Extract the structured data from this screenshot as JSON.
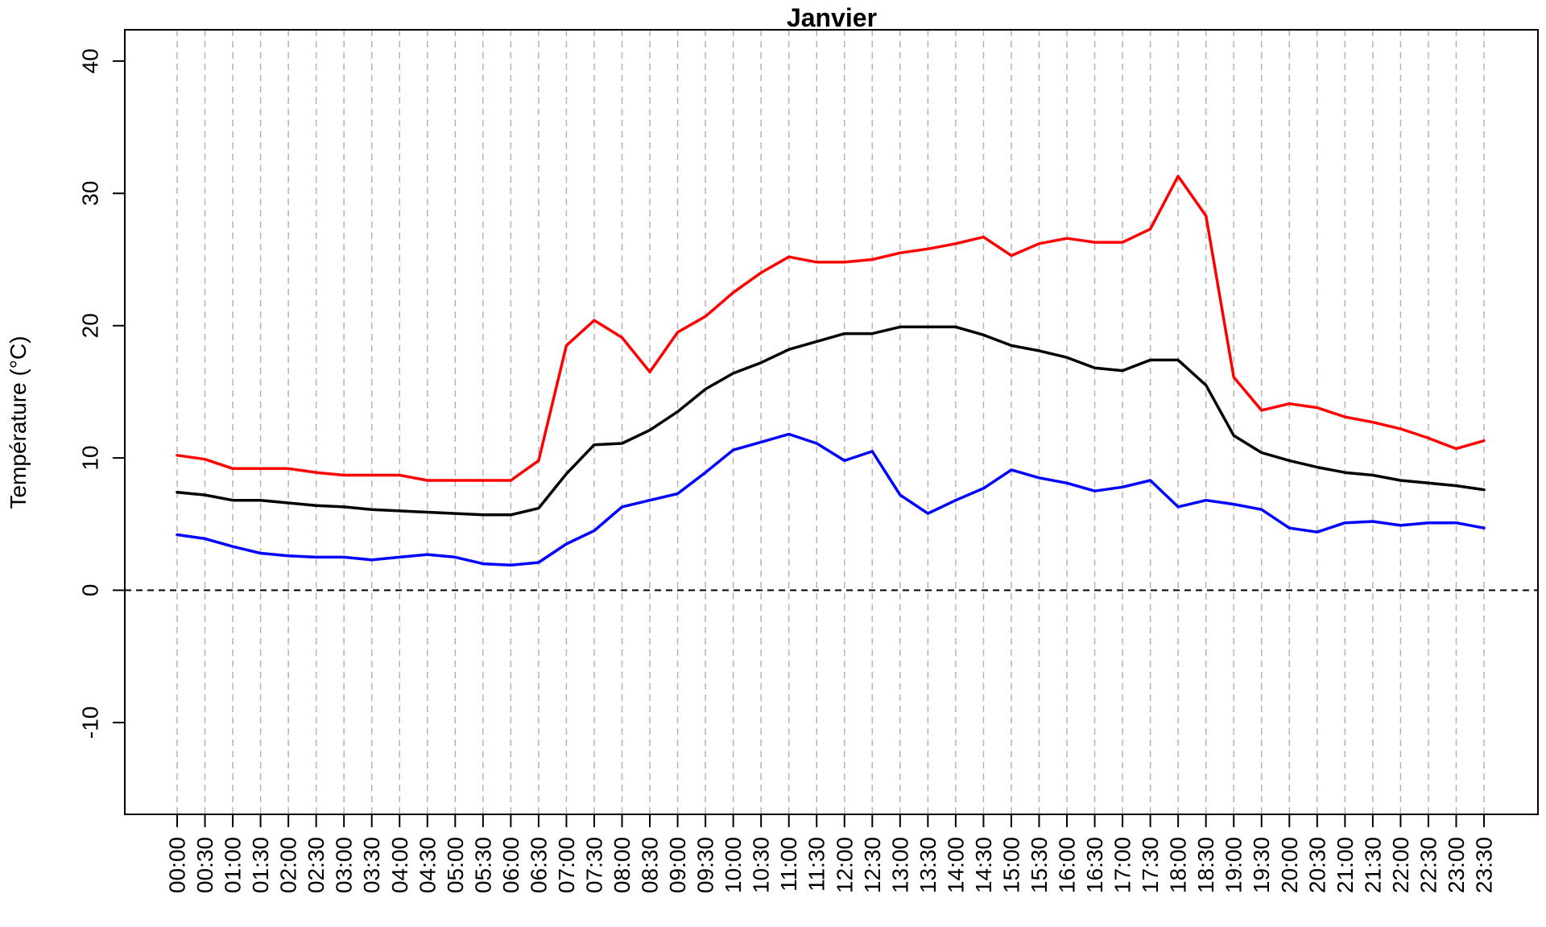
{
  "chart_data": {
    "type": "line",
    "title": "Janvier",
    "xlabel": "",
    "ylabel": "Température (°C)",
    "ylim": [
      -17,
      42
    ],
    "yticks": [
      -10,
      0,
      10,
      20,
      30,
      40
    ],
    "grid": "vertical-dashed",
    "reference_line_y": 0,
    "categories": [
      "00:00",
      "00:30",
      "01:00",
      "01:30",
      "02:00",
      "02:30",
      "03:00",
      "03:30",
      "04:00",
      "04:30",
      "05:00",
      "05:30",
      "06:00",
      "06:30",
      "07:00",
      "07:30",
      "08:00",
      "08:30",
      "09:00",
      "09:30",
      "10:00",
      "10:30",
      "11:00",
      "11:30",
      "12:00",
      "12:30",
      "13:00",
      "13:30",
      "14:00",
      "14:30",
      "15:00",
      "15:30",
      "16:00",
      "16:30",
      "17:00",
      "17:30",
      "18:00",
      "18:30",
      "19:00",
      "19:30",
      "20:00",
      "20:30",
      "21:00",
      "21:30",
      "22:00",
      "22:30",
      "23:00",
      "23:30"
    ],
    "series": [
      {
        "color": "#ff0000",
        "values": [
          10.2,
          9.9,
          9.2,
          9.2,
          9.2,
          8.9,
          8.7,
          8.7,
          8.7,
          8.3,
          8.3,
          8.3,
          8.3,
          9.8,
          18.5,
          20.4,
          19.1,
          16.5,
          19.5,
          20.7,
          22.5,
          24.0,
          25.2,
          24.8,
          24.8,
          25.0,
          25.5,
          25.8,
          26.2,
          26.7,
          25.3,
          26.2,
          26.6,
          26.3,
          26.3,
          27.3,
          31.3,
          28.3,
          16.1,
          13.6,
          14.1,
          13.8,
          13.1,
          12.7,
          12.2,
          11.5,
          10.7,
          11.3
        ]
      },
      {
        "color": "#000000",
        "values": [
          7.4,
          7.2,
          6.8,
          6.8,
          6.6,
          6.4,
          6.3,
          6.1,
          6.0,
          5.9,
          5.8,
          5.7,
          5.7,
          6.2,
          8.8,
          11.0,
          11.1,
          12.1,
          13.5,
          15.2,
          16.4,
          17.2,
          18.2,
          18.8,
          19.4,
          19.4,
          19.9,
          19.9,
          19.9,
          19.3,
          18.5,
          18.1,
          17.6,
          16.8,
          16.6,
          17.4,
          17.4,
          15.5,
          11.7,
          10.4,
          9.8,
          9.3,
          8.9,
          8.7,
          8.3,
          8.1,
          7.9,
          7.6
        ]
      },
      {
        "color": "#0000ff",
        "values": [
          4.2,
          3.9,
          3.3,
          2.8,
          2.6,
          2.5,
          2.5,
          2.3,
          2.5,
          2.7,
          2.5,
          2.0,
          1.9,
          2.1,
          3.5,
          4.5,
          6.3,
          6.8,
          7.3,
          8.9,
          10.6,
          11.2,
          11.8,
          11.1,
          9.8,
          10.5,
          7.2,
          5.8,
          6.8,
          7.7,
          9.1,
          8.5,
          8.1,
          7.5,
          7.8,
          8.3,
          6.3,
          6.8,
          6.5,
          6.1,
          4.7,
          4.4,
          5.1,
          5.2,
          4.9,
          5.1,
          5.1,
          4.7
        ]
      }
    ]
  }
}
